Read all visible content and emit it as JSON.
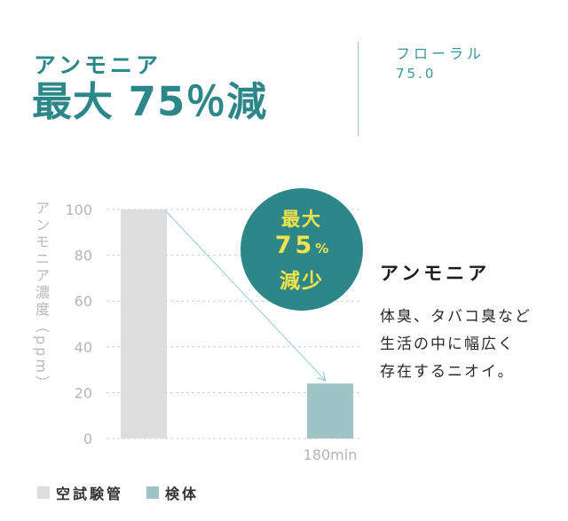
{
  "header": {
    "subtitle": "アンモニア",
    "headline": "最大 75％減",
    "comparison_label": "フローラル",
    "comparison_value": "75.0"
  },
  "badge": {
    "line1": "最大",
    "value": "75",
    "unit": "%",
    "line3": "減少"
  },
  "side": {
    "title": "アンモニア",
    "body": [
      "体臭、タバコ臭など",
      "生活の中に幅広く",
      "存在するニオイ。"
    ]
  },
  "colors": {
    "teal": "#2d8789",
    "badge_text": "#f3e24a",
    "control_bar": "#dddddd",
    "sample_bar": "#9fc4c6",
    "arrow": "#8fd0cd",
    "grid": "#cfcfcf",
    "axis_text": "#b5b5b5"
  },
  "chart_data": {
    "type": "bar",
    "ylabel": "アンモニア濃度（ppm）",
    "ylim": [
      0,
      100
    ],
    "yticks": [
      "100",
      "80",
      "60",
      "40",
      "20",
      "0"
    ],
    "categories": [
      "",
      "180min"
    ],
    "series": [
      {
        "name": "空試験管",
        "values": [
          100,
          null
        ]
      },
      {
        "name": "検体",
        "values": [
          null,
          24
        ]
      }
    ],
    "grid": true,
    "legend_position": "bottom-left",
    "annotation": "最大75%減少"
  }
}
